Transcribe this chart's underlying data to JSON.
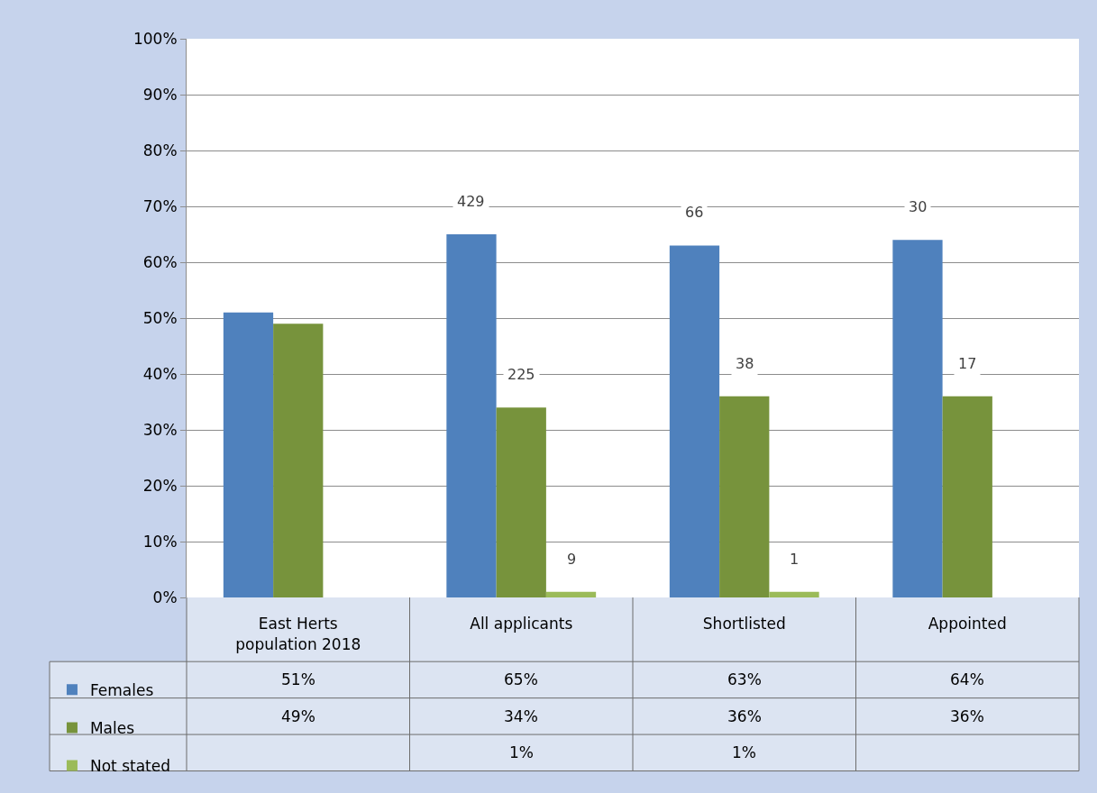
{
  "chart_data": {
    "type": "bar",
    "categories": [
      "East Herts population 2018",
      "All applicants",
      "Shortlisted",
      "Appointed"
    ],
    "series": [
      {
        "name": "Females",
        "color": "#4f81bd",
        "values": [
          51,
          65,
          63,
          64
        ],
        "value_labels": [
          "51%",
          "65%",
          "63%",
          "64%"
        ]
      },
      {
        "name": "Males",
        "color": "#77933c",
        "values": [
          49,
          34,
          36,
          36
        ],
        "value_labels": [
          "49%",
          "34%",
          "36%",
          "36%"
        ]
      },
      {
        "name": "Not stated",
        "color": "#9bbb59",
        "values": [
          null,
          1,
          1,
          null
        ],
        "value_labels": [
          null,
          "1%",
          "1%",
          null
        ]
      }
    ],
    "annotations": [
      "429",
      "225",
      "9",
      "66",
      "38",
      "1",
      "30",
      "17"
    ],
    "ylim": [
      0,
      100
    ],
    "yticks": [
      {
        "value": 0,
        "label": "0%"
      },
      {
        "value": 10,
        "label": "10%"
      },
      {
        "value": 20,
        "label": "20%"
      },
      {
        "value": 30,
        "label": "30%"
      },
      {
        "value": 40,
        "label": "40%"
      },
      {
        "value": 50,
        "label": "50%"
      },
      {
        "value": 60,
        "label": "60%"
      },
      {
        "value": 70,
        "label": "70%"
      },
      {
        "value": 80,
        "label": "80%"
      },
      {
        "value": 90,
        "label": "90%"
      },
      {
        "value": 100,
        "label": "100%"
      }
    ],
    "grid": "y",
    "legend": "bottom left"
  }
}
